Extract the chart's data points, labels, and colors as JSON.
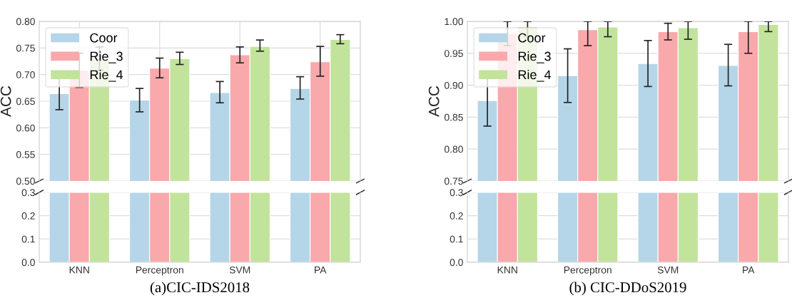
{
  "chart_data": [
    {
      "type": "bar",
      "ylabel": "ACC",
      "categories": [
        null,
        null,
        null,
        null
      ],
      "tick_labels": "y",
      "ylim": [
        0.5,
        0.8
      ],
      "yticks": [
        {
          "value": 0.5,
          "label": "0.50"
        },
        0.55,
        {
          "value": 0.6,
          "label": "0.60"
        },
        0.65,
        {
          "value": 0.7,
          "label": "0.70"
        },
        0.75,
        {
          "value": 0.8,
          "label": "0.80"
        }
      ],
      "grid": true,
      "legend": "top left",
      "series": [
        {
          "name": "Coor",
          "color": "#b5d5e8",
          "values": [
            0.664,
            0.652,
            0.666,
            0.674
          ],
          "errors": [
            [
              0.634,
              0.695
            ],
            [
              0.63,
              0.674
            ],
            [
              0.647,
              0.687
            ],
            [
              0.654,
              0.696
            ]
          ]
        },
        {
          "name": "Rie_3",
          "color": "#f9a8ab",
          "values": [
            0.708,
            0.712,
            0.737,
            0.724
          ],
          "errors": [
            [
              0.676,
              0.74
            ],
            [
              0.694,
              0.731
            ],
            [
              0.722,
              0.752
            ],
            [
              0.697,
              0.753
            ]
          ]
        },
        {
          "name": "Rie_4",
          "color": "#c2e39b",
          "values": [
            0.73,
            0.73,
            0.753,
            0.766
          ],
          "errors": [
            [
              0.708,
              0.752
            ],
            [
              0.719,
              0.742
            ],
            [
              0.744,
              0.765
            ],
            [
              0.758,
              0.775
            ]
          ]
        }
      ]
    },
    {
      "type": "bar",
      "title": "(a)CIC-IDS2018",
      "categories": [
        "KNN",
        "Perceptron",
        "SVM",
        "PA"
      ],
      "ylim": [
        0,
        0.3
      ],
      "yticks": [
        {
          "value": 0,
          "label": "0.0"
        },
        0.1,
        0.2,
        0.3
      ],
      "grid": true,
      "series": [
        {
          "color": "#b5d5e8",
          "values": [
            0.3,
            0.3,
            0.3,
            0.3
          ]
        },
        {
          "color": "#f9a8ab",
          "values": [
            0.3,
            0.3,
            0.3,
            0.3
          ]
        },
        {
          "color": "#c2e39b",
          "values": [
            0.3,
            0.3,
            0.3,
            0.3
          ]
        }
      ]
    },
    {
      "type": "bar",
      "ylabel": "ACC",
      "categories": [
        null,
        null,
        null,
        null
      ],
      "tick_labels": "y",
      "ylim": [
        0.75,
        1.0
      ],
      "yticks": [
        0.75,
        {
          "value": 0.8,
          "label": "0.80"
        },
        0.85,
        {
          "value": 0.9,
          "label": "0.90"
        },
        0.95,
        {
          "value": 1.0,
          "label": "1.00"
        }
      ],
      "grid": true,
      "legend": "top left",
      "series": [
        {
          "name": "Coor",
          "color": "#b5d5e8",
          "values": [
            0.876,
            0.915,
            0.934,
            0.931
          ],
          "errors": [
            0.04,
            [
              0.873,
              0.957
            ],
            [
              0.898,
              0.97
            ],
            [
              0.899,
              0.964
            ]
          ]
        },
        {
          "name": "Rie_3",
          "color": "#f9a8ab",
          "values": [
            0.981,
            0.987,
            0.984,
            0.984
          ],
          "errors": [
            [
              0.962,
              1.0
            ],
            [
              0.962,
              1.0
            ],
            [
              0.971,
              0.997
            ],
            [
              0.95,
              1.0
            ]
          ]
        },
        {
          "name": "Rie_4",
          "color": "#c2e39b",
          "values": [
            0.992,
            0.991,
            0.99,
            0.995
          ],
          "errors": [
            [
              0.976,
              1.0
            ],
            [
              0.976,
              1.0
            ],
            [
              0.972,
              1.0
            ],
            [
              0.984,
              1.0
            ]
          ]
        }
      ]
    },
    {
      "type": "bar",
      "title": "(b) CIC-DDoS2019",
      "categories": [
        "KNN",
        "Perceptron",
        "SVM",
        "PA"
      ],
      "ylim": [
        0,
        0.3
      ],
      "yticks": [
        {
          "value": 0,
          "label": "0.0"
        },
        0.1,
        0.2,
        0.3
      ],
      "grid": true,
      "series": [
        {
          "color": "#b5d5e8",
          "values": [
            0.3,
            0.3,
            0.3,
            0.3
          ]
        },
        {
          "color": "#f9a8ab",
          "values": [
            0.3,
            0.3,
            0.3,
            0.3
          ]
        },
        {
          "color": "#c2e39b",
          "values": [
            0.3,
            0.3,
            0.3,
            0.3
          ]
        }
      ]
    }
  ]
}
